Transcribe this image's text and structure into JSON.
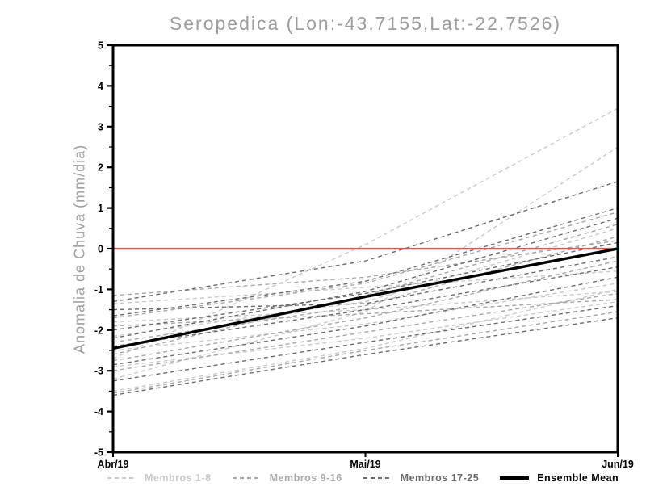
{
  "chart_data": {
    "type": "line",
    "title": "Seropedica (Lon:-43.7155,Lat:-22.7526)",
    "ylabel": "Anomalia de Chuva (mm/dia)",
    "xlabel": "",
    "categories": [
      "Abr/19",
      "Mai/19",
      "Jun/19"
    ],
    "ylim": [
      -5,
      5
    ],
    "yticks": [
      5,
      4,
      3,
      2,
      1,
      0,
      -1,
      -2,
      -3,
      -4,
      -5
    ],
    "grid": false,
    "legend_position": "bottom",
    "axis_color": "#000000",
    "zero_line": {
      "value": 0,
      "color": "#f94b4b"
    },
    "groups": [
      {
        "label": "Membros 1-8",
        "color": "#cacaca",
        "style": "dashed"
      },
      {
        "label": "Membros 9-16",
        "color": "#a8a8a8",
        "style": "dashed"
      },
      {
        "label": "Membros 17-25",
        "color": "#6b6b6b",
        "style": "dashed"
      }
    ],
    "members": [
      {
        "group": 0,
        "values": [
          -2.7,
          0.1,
          3.45
        ]
      },
      {
        "group": 0,
        "values": [
          -3.2,
          -1.55,
          2.5
        ]
      },
      {
        "group": 0,
        "values": [
          -1.35,
          -0.95,
          -0.55
        ]
      },
      {
        "group": 0,
        "values": [
          -1.8,
          -1.5,
          -1.05
        ]
      },
      {
        "group": 0,
        "values": [
          -2.9,
          -2.2,
          -1.3
        ]
      },
      {
        "group": 0,
        "values": [
          -3.5,
          -2.45,
          -1.0
        ]
      },
      {
        "group": 0,
        "values": [
          -2.15,
          -1.3,
          0.5
        ]
      },
      {
        "group": 0,
        "values": [
          -2.5,
          -1.85,
          -0.85
        ]
      },
      {
        "group": 1,
        "values": [
          -1.15,
          -0.7,
          0.2
        ]
      },
      {
        "group": 1,
        "values": [
          -1.7,
          -0.85,
          0.9
        ]
      },
      {
        "group": 1,
        "values": [
          -2.3,
          -1.4,
          0.3
        ]
      },
      {
        "group": 1,
        "values": [
          -2.75,
          -1.7,
          -0.3
        ]
      },
      {
        "group": 1,
        "values": [
          -3.0,
          -2.05,
          -1.1
        ]
      },
      {
        "group": 1,
        "values": [
          -3.55,
          -2.5,
          -1.55
        ]
      },
      {
        "group": 1,
        "values": [
          -1.9,
          -1.6,
          -1.25
        ]
      },
      {
        "group": 1,
        "values": [
          -2.6,
          -1.15,
          0.6
        ]
      },
      {
        "group": 2,
        "values": [
          -1.3,
          -0.3,
          1.65
        ]
      },
      {
        "group": 2,
        "values": [
          -1.65,
          -0.8,
          1.0
        ]
      },
      {
        "group": 2,
        "values": [
          -2.0,
          -1.1,
          0.15
        ]
      },
      {
        "group": 2,
        "values": [
          -2.4,
          -1.5,
          -0.45
        ]
      },
      {
        "group": 2,
        "values": [
          -2.85,
          -1.9,
          -0.7
        ]
      },
      {
        "group": 2,
        "values": [
          -3.25,
          -2.3,
          -1.4
        ]
      },
      {
        "group": 2,
        "values": [
          -3.6,
          -2.6,
          -1.7
        ]
      },
      {
        "group": 2,
        "values": [
          -2.2,
          -1.05,
          0.75
        ]
      },
      {
        "group": 2,
        "values": [
          -1.5,
          -1.35,
          -0.2
        ]
      }
    ],
    "ensemble_mean": {
      "label": "Ensemble Mean",
      "color": "#000000",
      "values": [
        -2.45,
        -1.18,
        0.0
      ]
    },
    "legend": [
      {
        "label": "Membros 1-8",
        "color": "#cacaca",
        "style": "dashed"
      },
      {
        "label": "Membros 9-16",
        "color": "#a8a8a8",
        "style": "dashed"
      },
      {
        "label": "Membros 17-25",
        "color": "#6b6b6b",
        "style": "dashed"
      },
      {
        "label": "Ensemble Mean",
        "color": "#000000",
        "style": "solid"
      }
    ]
  }
}
